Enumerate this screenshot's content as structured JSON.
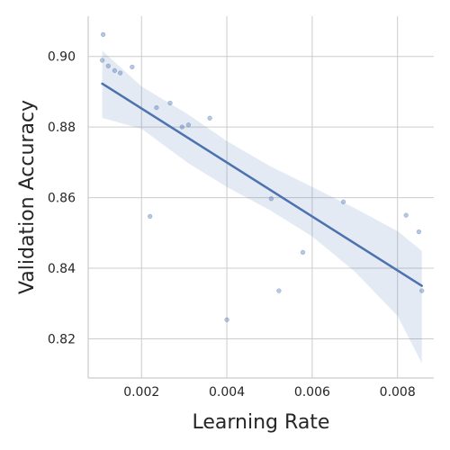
{
  "chart_data": {
    "type": "scatter",
    "title": "",
    "xlabel": "Learning Rate",
    "ylabel": "Validation Accuracy",
    "xlim": [
      0.00075,
      0.00885
    ],
    "ylim": [
      0.8089,
      0.9114
    ],
    "x_ticks": [
      0.002,
      0.004,
      0.006,
      0.008
    ],
    "x_tick_labels": [
      "0.002",
      "0.004",
      "0.006",
      "0.008"
    ],
    "y_ticks": [
      0.82,
      0.84,
      0.86,
      0.88,
      0.9
    ],
    "y_tick_labels": [
      "0.82",
      "0.84",
      "0.86",
      "0.88",
      "0.90"
    ],
    "grid": true,
    "points": {
      "x": [
        0.0011,
        0.00108,
        0.00122,
        0.00137,
        0.0015,
        0.00178,
        0.0022,
        0.00235,
        0.00267,
        0.00295,
        0.0031,
        0.0036,
        0.004,
        0.00504,
        0.00522,
        0.00578,
        0.00673,
        0.0082,
        0.0085,
        0.00857
      ],
      "y": [
        0.9062,
        0.8989,
        0.8973,
        0.896,
        0.8953,
        0.897,
        0.8547,
        0.8855,
        0.8868,
        0.88,
        0.8806,
        0.8825,
        0.8254,
        0.8597,
        0.8336,
        0.8445,
        0.8588,
        0.855,
        0.8503,
        0.8336
      ]
    },
    "regression": {
      "x": [
        0.00108,
        0.00857
      ],
      "y": [
        0.8923,
        0.835
      ]
    },
    "confidence_band": {
      "x": [
        0.00108,
        0.002,
        0.0031,
        0.004,
        0.005,
        0.006,
        0.007,
        0.008,
        0.00857
      ],
      "upper": [
        0.9016,
        0.8915,
        0.8835,
        0.876,
        0.869,
        0.863,
        0.857,
        0.8505,
        0.8449
      ],
      "lower": [
        0.8826,
        0.8795,
        0.8697,
        0.863,
        0.8565,
        0.849,
        0.839,
        0.8265,
        0.8131
      ]
    },
    "colors": {
      "series": "#4c72b0",
      "grid": "#cccccc",
      "text": "#262626"
    }
  }
}
